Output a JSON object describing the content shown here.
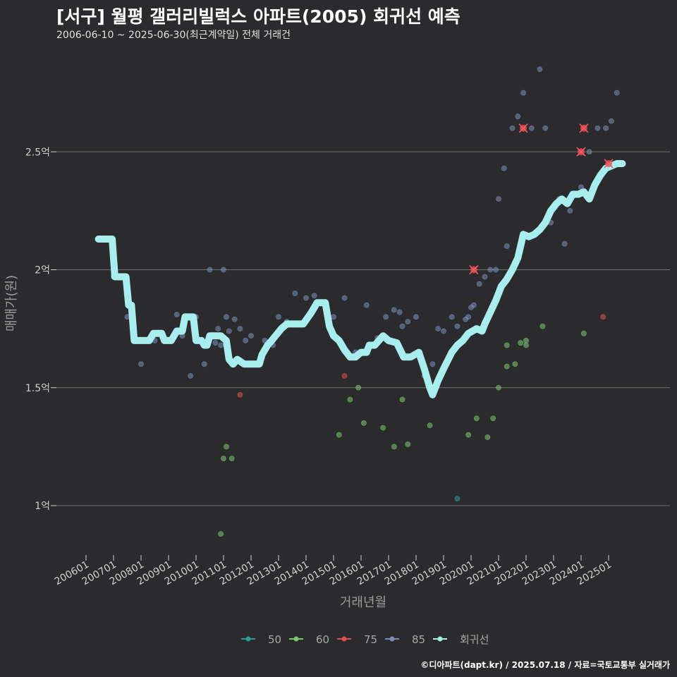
{
  "header": {
    "title": "[서구] 월평 갤러리빌럭스 아파트(2005) 회귀선 예측",
    "subtitle": "2006-06-10 ~ 2025-06-30(최근계약일) 전체 거래건"
  },
  "footer": {
    "credit": "©디아파트(dapt.kr) / 2025.07.18 / 자료=국토교통부 실거래가"
  },
  "chart_data": {
    "type": "scatter",
    "title": "[서구] 월평 갤러리빌럭스 아파트(2005) 회귀선 예측",
    "subtitle": "2006-06-10 ~ 2025-06-30(최근계약일) 전체 거래건",
    "xlabel": "거래년월",
    "ylabel": "매매가(원)",
    "x_unit": "year (decimal)",
    "xlim": [
      2006.0,
      2026.0
    ],
    "ylim": [
      0.8,
      2.9
    ],
    "x_ticks": [
      {
        "value": 2006.0,
        "label": "200601"
      },
      {
        "value": 2007.0,
        "label": "200701"
      },
      {
        "value": 2008.0,
        "label": "200801"
      },
      {
        "value": 2009.0,
        "label": "200901"
      },
      {
        "value": 2010.0,
        "label": "201001"
      },
      {
        "value": 2011.0,
        "label": "201101"
      },
      {
        "value": 2012.0,
        "label": "201201"
      },
      {
        "value": 2013.0,
        "label": "201301"
      },
      {
        "value": 2014.0,
        "label": "201401"
      },
      {
        "value": 2015.0,
        "label": "201501"
      },
      {
        "value": 2016.0,
        "label": "201601"
      },
      {
        "value": 2017.0,
        "label": "201701"
      },
      {
        "value": 2018.0,
        "label": "201801"
      },
      {
        "value": 2019.0,
        "label": "201901"
      },
      {
        "value": 2020.0,
        "label": "202001"
      },
      {
        "value": 2021.0,
        "label": "202101"
      },
      {
        "value": 2022.0,
        "label": "202201"
      },
      {
        "value": 2023.0,
        "label": "202301"
      },
      {
        "value": 2024.0,
        "label": "202401"
      },
      {
        "value": 2025.0,
        "label": "202501"
      }
    ],
    "y_ticks": [
      {
        "value": 1.0,
        "label": "1억"
      },
      {
        "value": 1.5,
        "label": "1.5억"
      },
      {
        "value": 2.0,
        "label": "2억"
      },
      {
        "value": 2.5,
        "label": "2.5억"
      }
    ],
    "grid": "horizontal",
    "legend_position": "bottom",
    "series": [
      {
        "name": "50",
        "color": "#2e9ba0",
        "points": [
          [
            2019.5,
            1.03
          ]
        ]
      },
      {
        "name": "60",
        "color": "#7bc96f",
        "points": [
          [
            2010.9,
            0.88
          ],
          [
            2011.0,
            1.2
          ],
          [
            2011.1,
            1.25
          ],
          [
            2011.3,
            1.2
          ],
          [
            2015.2,
            1.3
          ],
          [
            2015.6,
            1.45
          ],
          [
            2015.9,
            1.5
          ],
          [
            2016.1,
            1.35
          ],
          [
            2016.8,
            1.33
          ],
          [
            2017.2,
            1.25
          ],
          [
            2017.5,
            1.45
          ],
          [
            2017.7,
            1.26
          ],
          [
            2018.5,
            1.34
          ],
          [
            2019.9,
            1.3
          ],
          [
            2020.2,
            1.37
          ],
          [
            2020.6,
            1.29
          ],
          [
            2020.8,
            1.37
          ],
          [
            2021.0,
            1.5
          ],
          [
            2021.3,
            1.59
          ],
          [
            2021.3,
            1.68
          ],
          [
            2021.6,
            1.6
          ],
          [
            2021.8,
            1.69
          ],
          [
            2022.0,
            1.68
          ],
          [
            2022.0,
            1.7
          ],
          [
            2022.6,
            1.76
          ],
          [
            2024.1,
            1.73
          ]
        ]
      },
      {
        "name": "75",
        "color": "#e05050",
        "points": [
          [
            2011.6,
            1.47
          ],
          [
            2015.4,
            1.55
          ],
          [
            2020.1,
            2.0
          ],
          [
            2021.9,
            2.6
          ],
          [
            2024.0,
            2.5
          ],
          [
            2024.1,
            2.6
          ],
          [
            2024.8,
            1.8
          ],
          [
            2025.0,
            2.45
          ]
        ]
      },
      {
        "name": "85",
        "color": "#7a8fb8",
        "points": [
          [
            2006.6,
            2.13
          ],
          [
            2007.0,
            1.97
          ],
          [
            2007.5,
            1.8
          ],
          [
            2008.0,
            1.6
          ],
          [
            2008.5,
            1.7
          ],
          [
            2009.0,
            1.7
          ],
          [
            2009.3,
            1.81
          ],
          [
            2009.5,
            1.72
          ],
          [
            2009.8,
            1.55
          ],
          [
            2010.0,
            1.8
          ],
          [
            2010.3,
            1.6
          ],
          [
            2010.5,
            2.0
          ],
          [
            2010.7,
            1.69
          ],
          [
            2010.8,
            1.75
          ],
          [
            2010.9,
            1.68
          ],
          [
            2011.0,
            2.0
          ],
          [
            2011.1,
            1.8
          ],
          [
            2011.2,
            1.74
          ],
          [
            2011.4,
            1.79
          ],
          [
            2011.6,
            1.75
          ],
          [
            2011.8,
            1.7
          ],
          [
            2012.0,
            1.72
          ],
          [
            2012.5,
            1.7
          ],
          [
            2012.8,
            1.68
          ],
          [
            2013.0,
            1.8
          ],
          [
            2013.3,
            1.78
          ],
          [
            2013.6,
            1.9
          ],
          [
            2014.0,
            1.88
          ],
          [
            2014.3,
            1.89
          ],
          [
            2014.7,
            1.86
          ],
          [
            2015.0,
            1.8
          ],
          [
            2015.4,
            1.88
          ],
          [
            2015.8,
            1.65
          ],
          [
            2016.2,
            1.85
          ],
          [
            2016.6,
            1.71
          ],
          [
            2016.9,
            1.8
          ],
          [
            2017.2,
            1.83
          ],
          [
            2017.4,
            1.82
          ],
          [
            2017.5,
            1.76
          ],
          [
            2017.7,
            1.78
          ],
          [
            2018.0,
            1.8
          ],
          [
            2018.3,
            1.55
          ],
          [
            2018.6,
            1.6
          ],
          [
            2018.8,
            1.75
          ],
          [
            2019.0,
            1.74
          ],
          [
            2019.3,
            1.8
          ],
          [
            2019.5,
            1.76
          ],
          [
            2019.8,
            1.79
          ],
          [
            2019.9,
            1.8
          ],
          [
            2020.0,
            1.84
          ],
          [
            2020.1,
            1.85
          ],
          [
            2020.3,
            1.94
          ],
          [
            2020.5,
            1.97
          ],
          [
            2020.7,
            2.0
          ],
          [
            2020.9,
            2.0
          ],
          [
            2021.0,
            2.3
          ],
          [
            2021.2,
            2.43
          ],
          [
            2021.3,
            2.1
          ],
          [
            2021.5,
            2.6
          ],
          [
            2021.7,
            2.65
          ],
          [
            2021.9,
            2.75
          ],
          [
            2022.2,
            2.6
          ],
          [
            2022.5,
            2.85
          ],
          [
            2022.7,
            2.6
          ],
          [
            2022.9,
            2.2
          ],
          [
            2023.2,
            2.3
          ],
          [
            2023.4,
            2.11
          ],
          [
            2023.6,
            2.25
          ],
          [
            2024.0,
            2.35
          ],
          [
            2024.3,
            2.5
          ],
          [
            2024.6,
            2.6
          ],
          [
            2024.9,
            2.6
          ],
          [
            2025.1,
            2.63
          ],
          [
            2025.3,
            2.75
          ]
        ]
      }
    ],
    "regression": {
      "name": "회귀선",
      "color": "#a8eeee",
      "points": [
        [
          2006.45,
          2.13
        ],
        [
          2006.95,
          2.13
        ],
        [
          2007.05,
          1.97
        ],
        [
          2007.45,
          1.97
        ],
        [
          2007.55,
          1.85
        ],
        [
          2007.65,
          1.85
        ],
        [
          2007.75,
          1.7
        ],
        [
          2008.3,
          1.7
        ],
        [
          2008.45,
          1.73
        ],
        [
          2008.75,
          1.73
        ],
        [
          2008.85,
          1.7
        ],
        [
          2009.1,
          1.7
        ],
        [
          2009.3,
          1.74
        ],
        [
          2009.5,
          1.74
        ],
        [
          2009.6,
          1.8
        ],
        [
          2009.9,
          1.8
        ],
        [
          2010.0,
          1.7
        ],
        [
          2010.2,
          1.7
        ],
        [
          2010.3,
          1.68
        ],
        [
          2010.4,
          1.68
        ],
        [
          2010.5,
          1.72
        ],
        [
          2010.9,
          1.72
        ],
        [
          2011.1,
          1.7
        ],
        [
          2011.2,
          1.62
        ],
        [
          2011.35,
          1.6
        ],
        [
          2011.5,
          1.62
        ],
        [
          2011.75,
          1.6
        ],
        [
          2012.1,
          1.6
        ],
        [
          2012.3,
          1.6
        ],
        [
          2012.4,
          1.64
        ],
        [
          2012.6,
          1.68
        ],
        [
          2012.75,
          1.7
        ],
        [
          2013.1,
          1.75
        ],
        [
          2013.3,
          1.77
        ],
        [
          2013.5,
          1.77
        ],
        [
          2013.9,
          1.77
        ],
        [
          2014.2,
          1.82
        ],
        [
          2014.4,
          1.86
        ],
        [
          2014.7,
          1.86
        ],
        [
          2014.85,
          1.76
        ],
        [
          2015.0,
          1.72
        ],
        [
          2015.2,
          1.7
        ],
        [
          2015.4,
          1.66
        ],
        [
          2015.6,
          1.63
        ],
        [
          2015.8,
          1.63
        ],
        [
          2016.0,
          1.65
        ],
        [
          2016.2,
          1.65
        ],
        [
          2016.3,
          1.68
        ],
        [
          2016.5,
          1.68
        ],
        [
          2016.8,
          1.72
        ],
        [
          2017.0,
          1.7
        ],
        [
          2017.3,
          1.69
        ],
        [
          2017.55,
          1.63
        ],
        [
          2017.8,
          1.63
        ],
        [
          2018.1,
          1.65
        ],
        [
          2018.3,
          1.58
        ],
        [
          2018.5,
          1.5
        ],
        [
          2018.6,
          1.47
        ],
        [
          2018.8,
          1.53
        ],
        [
          2019.0,
          1.58
        ],
        [
          2019.3,
          1.65
        ],
        [
          2019.5,
          1.68
        ],
        [
          2019.7,
          1.7
        ],
        [
          2019.9,
          1.73
        ],
        [
          2020.2,
          1.75
        ],
        [
          2020.4,
          1.74
        ],
        [
          2020.5,
          1.77
        ],
        [
          2020.7,
          1.82
        ],
        [
          2020.9,
          1.87
        ],
        [
          2021.1,
          1.93
        ],
        [
          2021.3,
          1.96
        ],
        [
          2021.5,
          2.0
        ],
        [
          2021.7,
          2.05
        ],
        [
          2021.9,
          2.15
        ],
        [
          2022.1,
          2.14
        ],
        [
          2022.3,
          2.15
        ],
        [
          2022.5,
          2.17
        ],
        [
          2022.7,
          2.2
        ],
        [
          2022.9,
          2.25
        ],
        [
          2023.1,
          2.28
        ],
        [
          2023.3,
          2.3
        ],
        [
          2023.5,
          2.28
        ],
        [
          2023.7,
          2.32
        ],
        [
          2023.9,
          2.32
        ],
        [
          2024.1,
          2.33
        ],
        [
          2024.3,
          2.3
        ],
        [
          2024.5,
          2.36
        ],
        [
          2024.7,
          2.4
        ],
        [
          2024.9,
          2.43
        ],
        [
          2025.1,
          2.44
        ],
        [
          2025.3,
          2.45
        ],
        [
          2025.5,
          2.45
        ]
      ]
    },
    "highlighted_points": [
      [
        2020.1,
        2.0
      ],
      [
        2021.9,
        2.6
      ],
      [
        2024.0,
        2.5
      ],
      [
        2024.1,
        2.6
      ],
      [
        2025.0,
        2.45
      ]
    ],
    "legend": [
      "50",
      "60",
      "75",
      "85",
      "회귀선"
    ]
  }
}
